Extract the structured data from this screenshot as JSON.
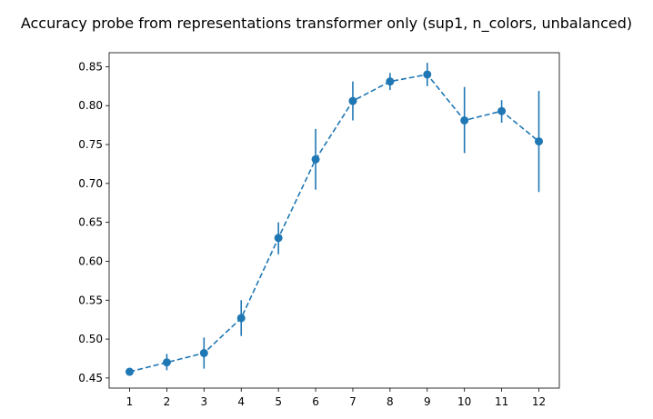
{
  "chart_data": {
    "type": "line",
    "title": "Accuracy probe from representations transformer only (sup1, n_colors, unbalanced)",
    "xlabel": "",
    "ylabel": "",
    "x": [
      1,
      2,
      3,
      4,
      5,
      6,
      7,
      8,
      9,
      10,
      11,
      12
    ],
    "xlim": [
      0.45,
      12.55
    ],
    "ylim": [
      0.437,
      0.868
    ],
    "yticks": [
      0.45,
      0.5,
      0.55,
      0.6,
      0.65,
      0.7,
      0.75,
      0.8,
      0.85
    ],
    "ytick_labels": [
      "0.45",
      "0.50",
      "0.55",
      "0.60",
      "0.65",
      "0.70",
      "0.75",
      "0.80",
      "0.85"
    ],
    "grid": false,
    "series": [
      {
        "values": [
          0.458,
          0.47,
          0.482,
          0.527,
          0.63,
          0.731,
          0.806,
          0.831,
          0.84,
          0.781,
          0.793,
          0.754
        ],
        "error_low": [
          0.456,
          0.46,
          0.462,
          0.504,
          0.609,
          0.692,
          0.781,
          0.82,
          0.825,
          0.739,
          0.778,
          0.689
        ],
        "error_high": [
          0.461,
          0.481,
          0.502,
          0.55,
          0.65,
          0.77,
          0.831,
          0.842,
          0.855,
          0.824,
          0.807,
          0.819
        ],
        "color": "#1f77b4",
        "line_style": "dashed",
        "marker": "circle"
      }
    ]
  }
}
